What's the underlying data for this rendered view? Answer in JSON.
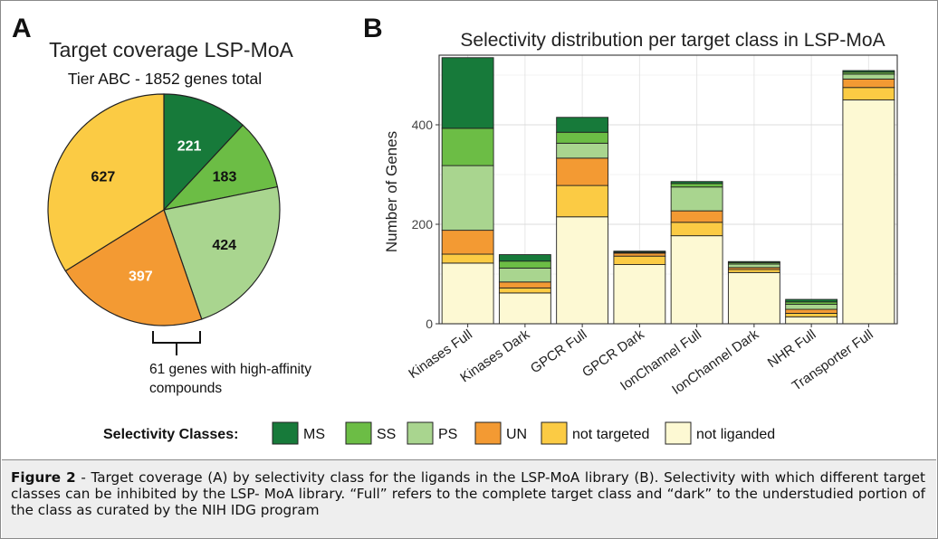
{
  "colors": {
    "MS": "#177a3a",
    "SS": "#6cbd45",
    "PS": "#a9d58f",
    "UN": "#f39a33",
    "not_targeted": "#fbcb44",
    "not_liganded": "#fdf9d3"
  },
  "panel_a": {
    "letter": "A",
    "title": "Target coverage LSP-MoA",
    "subtitle": "Tier ABC - 1852 genes total",
    "annotation_line1": "61 genes with high-affinity",
    "annotation_line2": "compounds"
  },
  "panel_b": {
    "letter": "B"
  },
  "legend": {
    "title": "Selectivity Classes:",
    "items": [
      {
        "key": "MS",
        "label": "MS"
      },
      {
        "key": "SS",
        "label": "SS"
      },
      {
        "key": "PS",
        "label": "PS"
      },
      {
        "key": "UN",
        "label": "UN"
      },
      {
        "key": "not_targeted",
        "label": "not targeted"
      },
      {
        "key": "not_liganded",
        "label": "not liganded"
      }
    ]
  },
  "chart_data": [
    {
      "type": "pie",
      "title": "Target coverage LSP-MoA",
      "subtitle": "Tier ABC - 1852 genes total",
      "slices": [
        {
          "class": "MS",
          "value": 221
        },
        {
          "class": "SS",
          "value": 183
        },
        {
          "class": "PS",
          "value": 424
        },
        {
          "class": "UN",
          "value": 397
        },
        {
          "class": "not_targeted",
          "value": 627
        }
      ]
    },
    {
      "type": "bar",
      "stacked": true,
      "title": "Selectivity distribution per target class in LSP-MoA",
      "ylabel": "Number of Genes",
      "ylim": [
        0,
        540
      ],
      "yticks": [
        0,
        200,
        400
      ],
      "grid": true,
      "categories": [
        "Kinases Full",
        "Kinases Dark",
        "GPCR Full",
        "GPCR Dark",
        "IonChannel Full",
        "IonChannel Dark",
        "NHR Full",
        "Transporter Full"
      ],
      "series": [
        {
          "name": "not liganded",
          "key": "not_liganded",
          "values": [
            122,
            62,
            215,
            119,
            177,
            103,
            14,
            450
          ]
        },
        {
          "name": "not targeted",
          "key": "not_targeted",
          "values": [
            18,
            10,
            63,
            17,
            27,
            6,
            7,
            25
          ]
        },
        {
          "name": "UN",
          "key": "UN",
          "values": [
            48,
            12,
            55,
            6,
            23,
            4,
            8,
            17
          ]
        },
        {
          "name": "PS",
          "key": "PS",
          "values": [
            130,
            28,
            30,
            1,
            48,
            7,
            10,
            10
          ]
        },
        {
          "name": "SS",
          "key": "SS",
          "values": [
            75,
            14,
            22,
            1,
            7,
            3,
            5,
            4
          ]
        },
        {
          "name": "MS",
          "key": "MS",
          "values": [
            142,
            13,
            30,
            2,
            4,
            2,
            5,
            3
          ]
        }
      ]
    }
  ],
  "caption": {
    "label": "Figure 2",
    "text": " -   Target coverage (A) by selectivity class for the ligands in the LSP-MoA library (B). Selectivity with which different target classes can be inhibited by the LSP- MoA library. “Full” refers to the complete target class and “dark” to the understudied portion of the class as curated by the NIH IDG program"
  }
}
